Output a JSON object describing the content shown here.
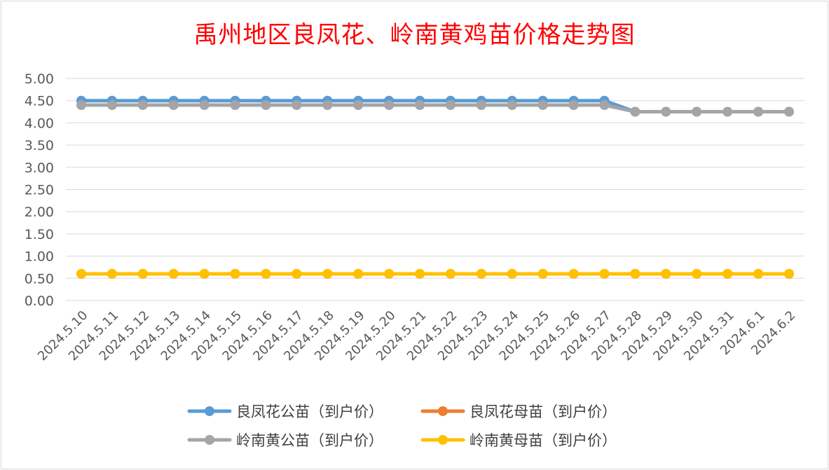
{
  "chart_data": {
    "type": "line",
    "title": "禹州地区良凤花、岭南黄鸡苗价格走势图",
    "xlabel": "",
    "ylabel": "",
    "ylim": [
      0,
      5
    ],
    "y_ticks": [
      "0.00",
      "0.50",
      "1.00",
      "1.50",
      "2.00",
      "2.50",
      "3.00",
      "3.50",
      "4.00",
      "4.50",
      "5.00"
    ],
    "grid": true,
    "legend_position": "bottom",
    "categories": [
      "2024.5.10",
      "2024.5.11",
      "2024.5.12",
      "2024.5.13",
      "2024.5.14",
      "2024.5.15",
      "2024.5.16",
      "2024.5.17",
      "2024.5.18",
      "2024.5.19",
      "2024.5.20",
      "2024.5.21",
      "2024.5.22",
      "2024.5.23",
      "2024.5.24",
      "2024.5.25",
      "2024.5.26",
      "2024.5.27",
      "2024.5.28",
      "2024.5.29",
      "2024.5.30",
      "2024.5.31",
      "2024.6.1",
      "2024.6.2"
    ],
    "series": [
      {
        "name": "良凤花公苗（到户价）",
        "color": "#5b9bd5",
        "values": [
          4.5,
          4.5,
          4.5,
          4.5,
          4.5,
          4.5,
          4.5,
          4.5,
          4.5,
          4.5,
          4.5,
          4.5,
          4.5,
          4.5,
          4.5,
          4.5,
          4.5,
          4.5,
          4.25,
          4.25,
          4.25,
          4.25,
          4.25,
          4.25
        ]
      },
      {
        "name": "良凤花母苗（到户价）",
        "color": "#ed7d31",
        "values": [
          0.6,
          0.6,
          0.6,
          0.6,
          0.6,
          0.6,
          0.6,
          0.6,
          0.6,
          0.6,
          0.6,
          0.6,
          0.6,
          0.6,
          0.6,
          0.6,
          0.6,
          0.6,
          0.6,
          0.6,
          0.6,
          0.6,
          0.6,
          0.6
        ]
      },
      {
        "name": "岭南黄公苗（到户价）",
        "color": "#a5a5a5",
        "values": [
          4.4,
          4.4,
          4.4,
          4.4,
          4.4,
          4.4,
          4.4,
          4.4,
          4.4,
          4.4,
          4.4,
          4.4,
          4.4,
          4.4,
          4.4,
          4.4,
          4.4,
          4.4,
          4.25,
          4.25,
          4.25,
          4.25,
          4.25,
          4.25
        ]
      },
      {
        "name": "岭南黄母苗（到户价）",
        "color": "#ffc000",
        "values": [
          0.6,
          0.6,
          0.6,
          0.6,
          0.6,
          0.6,
          0.6,
          0.6,
          0.6,
          0.6,
          0.6,
          0.6,
          0.6,
          0.6,
          0.6,
          0.6,
          0.6,
          0.6,
          0.6,
          0.6,
          0.6,
          0.6,
          0.6,
          0.6
        ]
      }
    ]
  }
}
